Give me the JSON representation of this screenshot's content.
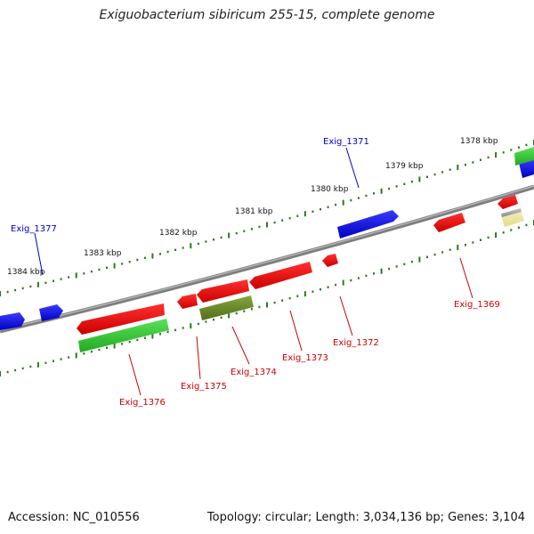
{
  "title": "Exiguobacterium sibiricum 255-15, complete genome",
  "accession_text": "Accession: NC_010556",
  "summary_text": "Topology: circular; Length: 3,034,136 bp; Genes: 3,104",
  "colors": {
    "backbone": "#7f7f7f",
    "tick": "#2a7a1a",
    "forward_label": "#0000cc",
    "reverse_label": "#cc0000",
    "blue": "#0000ee",
    "red": "#ee0000",
    "green": "#33cc33",
    "olive": "#6b8e23",
    "khaki": "#eee8aa",
    "gray": "#a9a9a9"
  },
  "kbp_labels": [
    "1378 kbp",
    "1379 kbp",
    "1380 kbp",
    "1381 kbp",
    "1382 kbp",
    "1383 kbp",
    "1384 kbp"
  ],
  "gene_labels": {
    "forward": [
      "Exig_1371",
      "Exig_1377"
    ],
    "reverse": [
      "Exig_1369",
      "Exig_1372",
      "Exig_1373",
      "Exig_1374",
      "Exig_1375",
      "Exig_1376"
    ]
  },
  "features": [
    {
      "strand": "forward",
      "color": "blue"
    },
    {
      "strand": "forward",
      "color": "blue"
    },
    {
      "strand": "forward",
      "color": "blue"
    },
    {
      "strand": "forward",
      "color": "blue"
    },
    {
      "strand": "forward",
      "color": "green"
    },
    {
      "strand": "reverse",
      "color": "red"
    },
    {
      "strand": "reverse",
      "color": "red"
    },
    {
      "strand": "reverse",
      "color": "red"
    },
    {
      "strand": "reverse",
      "color": "red"
    },
    {
      "strand": "reverse",
      "color": "red"
    },
    {
      "strand": "reverse",
      "color": "red"
    },
    {
      "strand": "reverse",
      "color": "red"
    },
    {
      "strand": "reverse",
      "color": "green"
    },
    {
      "strand": "reverse",
      "color": "olive"
    },
    {
      "strand": "reverse",
      "color": "khaki"
    },
    {
      "strand": "reverse",
      "color": "gray"
    }
  ]
}
